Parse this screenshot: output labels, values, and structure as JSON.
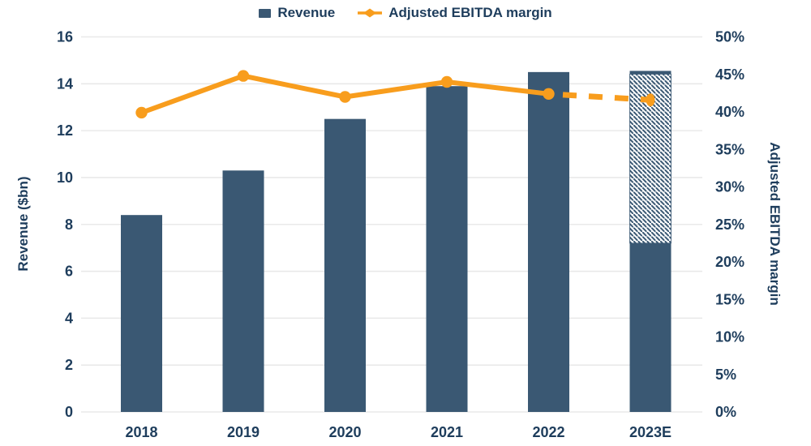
{
  "legend": {
    "items": [
      {
        "label": "Revenue",
        "marker": "square"
      },
      {
        "label": "Adjusted EBITDA margin",
        "marker": "line-diamond"
      }
    ],
    "position": "top-center"
  },
  "chart_data": {
    "type": "bar+line",
    "categories": [
      "2018",
      "2019",
      "2020",
      "2021",
      "2022",
      "2023E"
    ],
    "series": [
      {
        "name": "Revenue",
        "type": "bar",
        "axis": "left",
        "values": [
          8.4,
          10.3,
          12.5,
          13.9,
          14.5,
          14.55
        ],
        "forecast": {
          "category": "2023E",
          "index": 5,
          "solid_value": 7.2,
          "total_value": 14.55,
          "style": "hatched"
        }
      },
      {
        "name": "Adjusted EBITDA margin",
        "type": "line",
        "axis": "right",
        "values": [
          39.9,
          44.8,
          42.0,
          44.0,
          42.4,
          41.6
        ],
        "unit": "%",
        "dashed_from_index": 4,
        "dashed_reason": "forecast segment to 2023E"
      }
    ],
    "left_axis": {
      "label": "Revenue ($bn)",
      "min": 0,
      "max": 16,
      "tick_step": 2,
      "ticks": [
        "0",
        "2",
        "4",
        "6",
        "8",
        "10",
        "12",
        "14",
        "16"
      ]
    },
    "right_axis": {
      "label": "Adjusted EBITDA margin",
      "min": 0,
      "max": 50,
      "tick_step": 5,
      "ticks": [
        "0%",
        "5%",
        "10%",
        "15%",
        "20%",
        "25%",
        "30%",
        "35%",
        "40%",
        "45%",
        "50%"
      ]
    },
    "grid": {
      "show": true,
      "follows": "left_axis"
    },
    "title": "",
    "legend_position": "top-center"
  },
  "colors": {
    "bar": "#3A5873",
    "line": "#F89D1D",
    "text": "#1E3D5C",
    "gridline": "#E9E9E9",
    "background": "#FFFFFF"
  }
}
